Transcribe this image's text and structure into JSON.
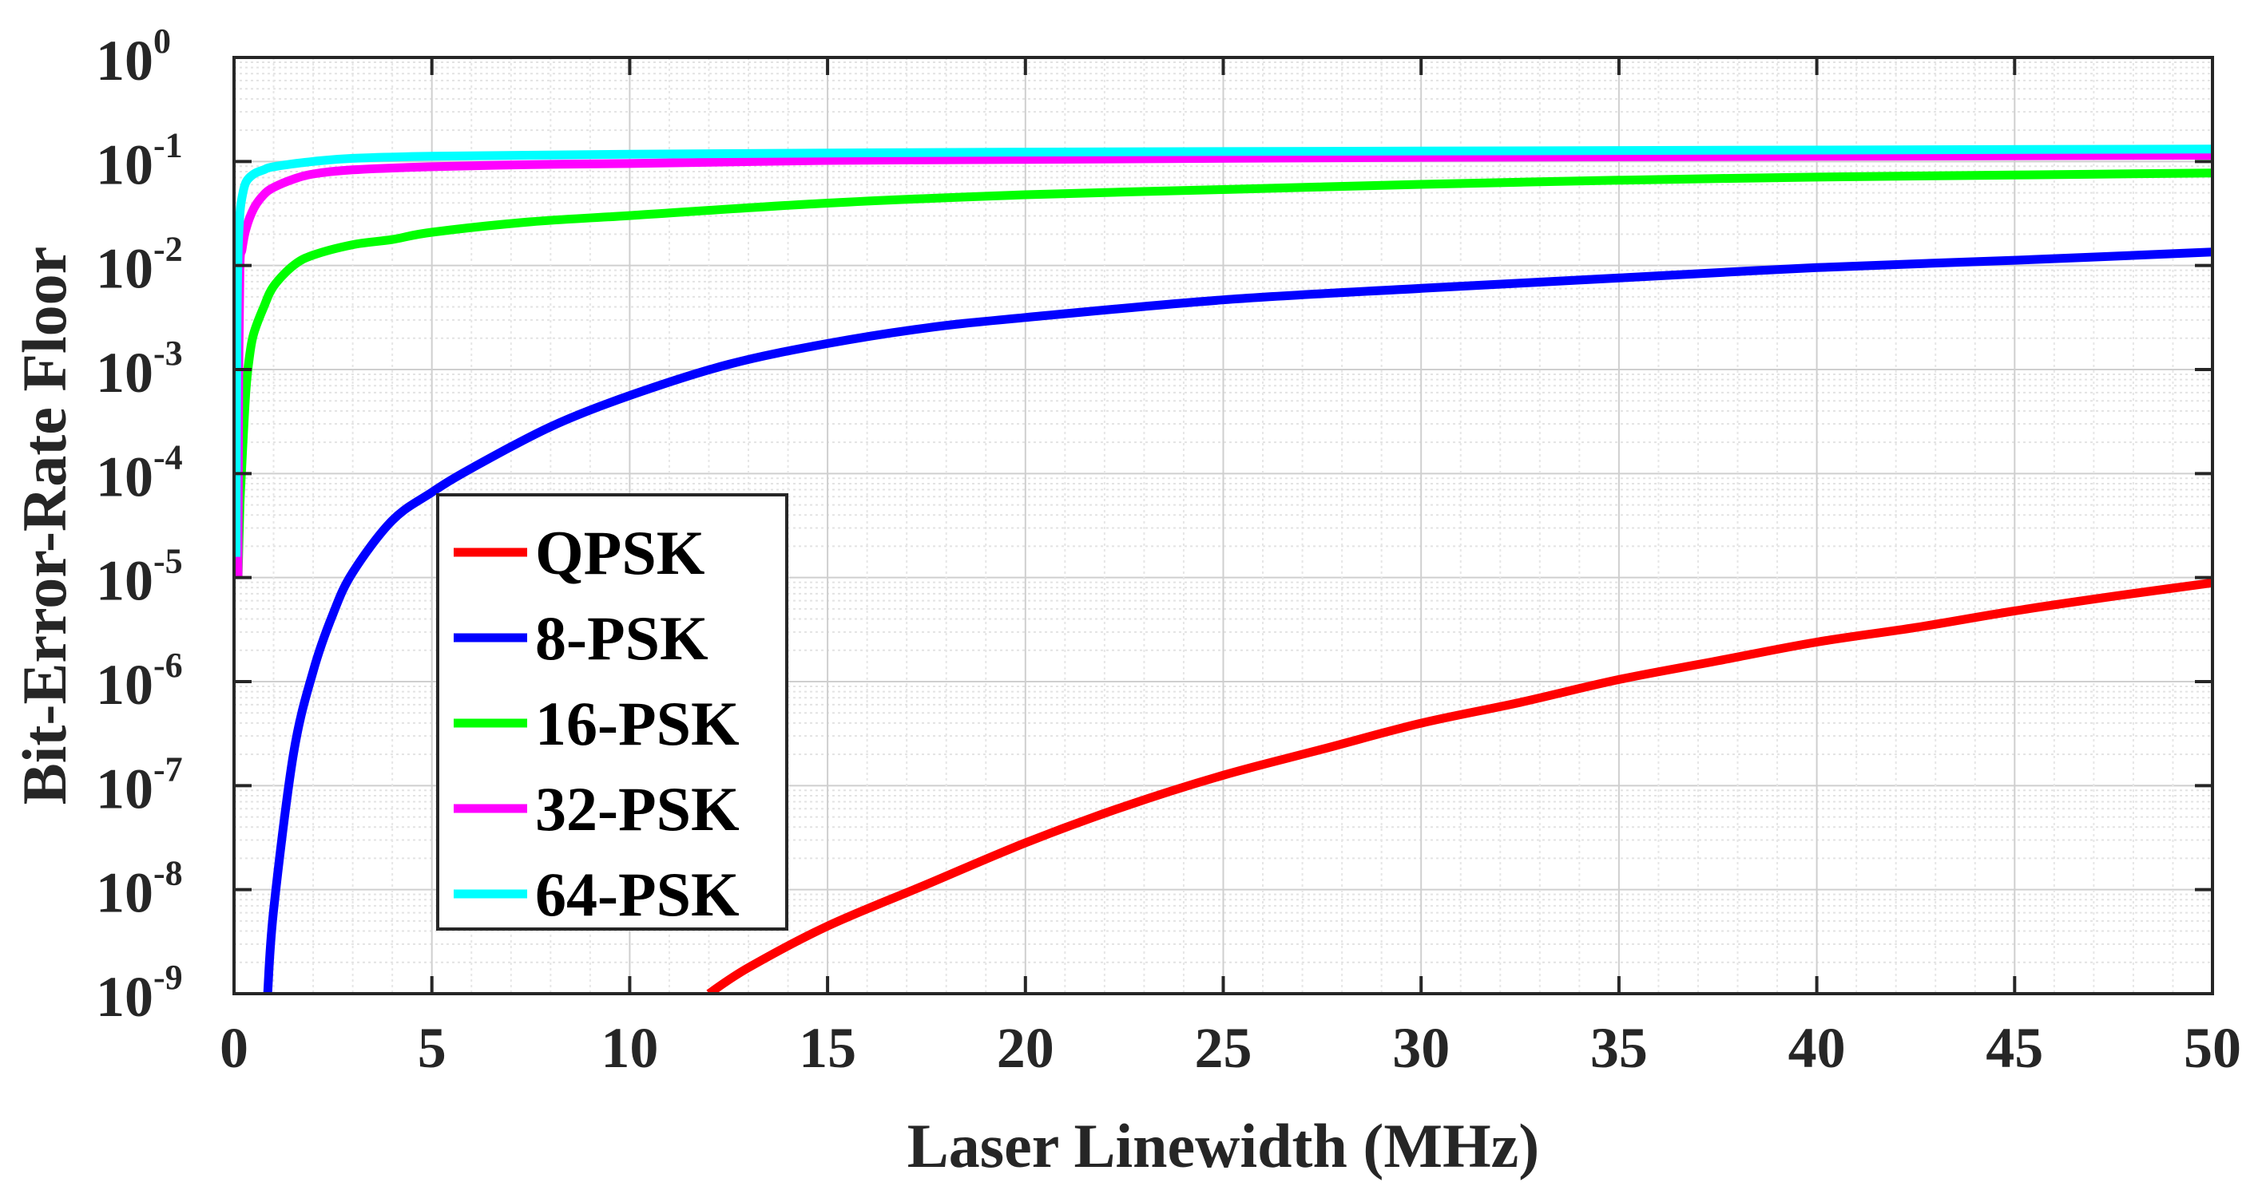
{
  "chart_data": {
    "type": "line",
    "title": "",
    "xlabel": "Laser Linewidth (MHz)",
    "ylabel": "Bit-Error-Rate Floor",
    "xlim": [
      0,
      50
    ],
    "ylim_exponents": [
      -9,
      0
    ],
    "yscale": "log",
    "grid": true,
    "legend_position": "lower-left",
    "x_ticks": [
      "0",
      "5",
      "10",
      "15",
      "20",
      "25",
      "30",
      "35",
      "40",
      "45",
      "50"
    ],
    "y_ticks": [
      {
        "base": "10",
        "exp": "0"
      },
      {
        "base": "10",
        "exp": "-1"
      },
      {
        "base": "10",
        "exp": "-2"
      },
      {
        "base": "10",
        "exp": "-3"
      },
      {
        "base": "10",
        "exp": "-4"
      },
      {
        "base": "10",
        "exp": "-5"
      },
      {
        "base": "10",
        "exp": "-6"
      },
      {
        "base": "10",
        "exp": "-7"
      },
      {
        "base": "10",
        "exp": "-8"
      },
      {
        "base": "10",
        "exp": "-9"
      }
    ],
    "series": [
      {
        "name": "QPSK",
        "color": "#ff0000",
        "x": [
          12,
          13,
          15,
          17.5,
          20,
          22.5,
          25,
          27.5,
          30,
          32.5,
          35,
          37.5,
          40,
          42.5,
          45,
          47.5,
          50
        ],
        "y_log10": [
          -9.0,
          -8.75,
          -8.35,
          -7.95,
          -7.55,
          -7.2,
          -6.9,
          -6.65,
          -6.4,
          -6.2,
          -5.98,
          -5.8,
          -5.62,
          -5.48,
          -5.32,
          -5.18,
          -5.05
        ]
      },
      {
        "name": "8-PSK",
        "color": "#0000ff",
        "x": [
          0.85,
          1,
          1.5,
          2,
          2.5,
          3,
          4,
          5,
          6,
          8,
          10,
          12.5,
          15,
          17.5,
          20,
          25,
          30,
          35,
          40,
          45,
          50
        ],
        "y_log10": [
          -9.0,
          -8.2,
          -6.7,
          -5.9,
          -5.35,
          -4.95,
          -4.45,
          -4.18,
          -3.95,
          -3.55,
          -3.25,
          -2.95,
          -2.75,
          -2.6,
          -2.5,
          -2.33,
          -2.22,
          -2.12,
          -2.02,
          -1.95,
          -1.87
        ]
      },
      {
        "name": "16-PSK",
        "color": "#00ff00",
        "x": [
          0.1,
          0.15,
          0.2,
          0.3,
          0.4,
          0.5,
          0.75,
          1,
          1.5,
          2,
          3,
          4,
          5,
          7.5,
          10,
          15,
          20,
          25,
          30,
          35,
          40,
          45,
          50
        ],
        "y_log10": [
          -5.0,
          -4.3,
          -3.9,
          -3.2,
          -2.85,
          -2.65,
          -2.4,
          -2.2,
          -2.0,
          -1.9,
          -1.8,
          -1.75,
          -1.68,
          -1.58,
          -1.52,
          -1.4,
          -1.32,
          -1.27,
          -1.22,
          -1.18,
          -1.15,
          -1.13,
          -1.11
        ]
      },
      {
        "name": "32-PSK",
        "color": "#ff00ff",
        "x": [
          0.1,
          0.12,
          0.15,
          0.2,
          0.3,
          0.5,
          0.75,
          1,
          1.5,
          2,
          3,
          5,
          7.5,
          10,
          15,
          20,
          30,
          40,
          50
        ],
        "y_log10": [
          -5.0,
          -3.0,
          -2.0,
          -1.85,
          -1.65,
          -1.45,
          -1.32,
          -1.25,
          -1.17,
          -1.12,
          -1.08,
          -1.05,
          -1.03,
          -1.02,
          -0.99,
          -0.98,
          -0.96,
          -0.95,
          -0.94
        ]
      },
      {
        "name": "64-PSK",
        "color": "#00ffff",
        "x": [
          0.05,
          0.07,
          0.1,
          0.15,
          0.2,
          0.3,
          0.5,
          0.75,
          1,
          2,
          3,
          5,
          10,
          20,
          30,
          40,
          50
        ],
        "y_log10": [
          -4.8,
          -2.8,
          -1.9,
          -1.5,
          -1.35,
          -1.2,
          -1.12,
          -1.08,
          -1.05,
          -1.0,
          -0.97,
          -0.95,
          -0.93,
          -0.91,
          -0.9,
          -0.89,
          -0.88
        ]
      }
    ]
  }
}
